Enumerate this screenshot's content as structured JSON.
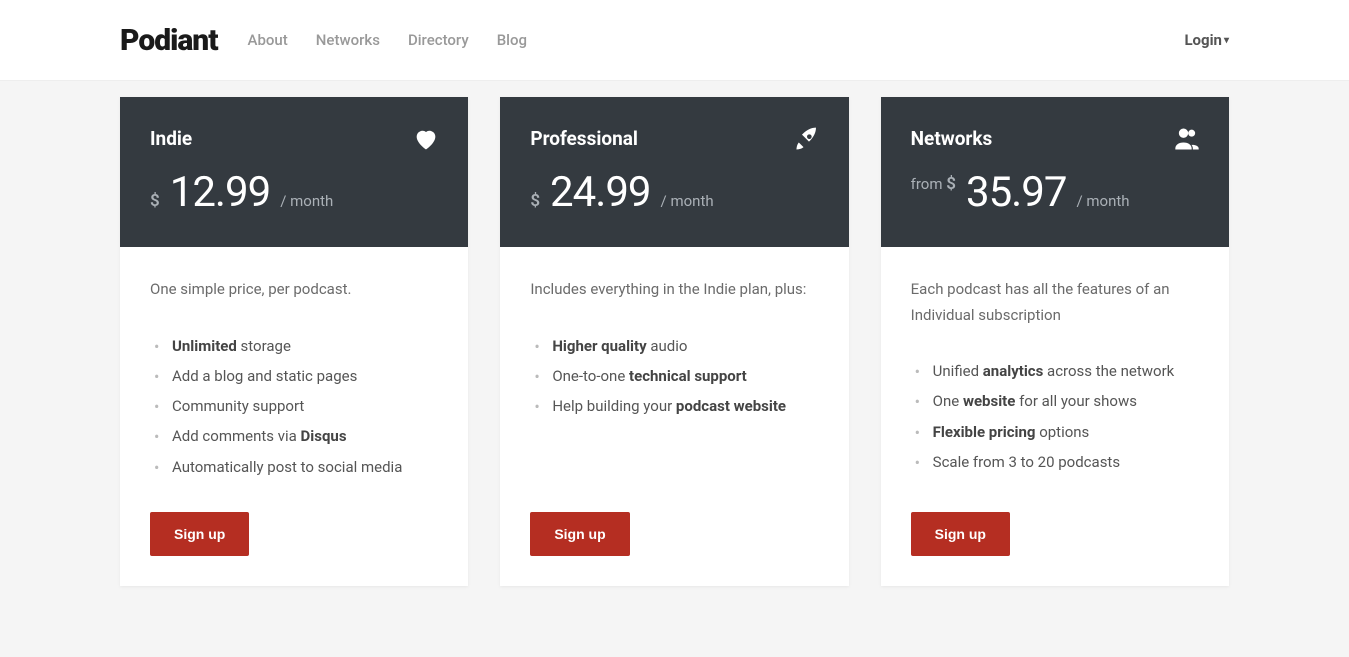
{
  "brand": "Podiant",
  "nav": {
    "about": "About",
    "networks": "Networks",
    "directory": "Directory",
    "blog": "Blog"
  },
  "login": "Login",
  "colors": {
    "card_header_bg": "#343a40",
    "signup_bg": "#b52e22",
    "page_bg": "#f5f5f5",
    "header_bg": "#ffffff",
    "text_muted": "#aab0b6"
  },
  "plans": {
    "indie": {
      "name": "Indie",
      "icon": "heart",
      "price_prefix": "",
      "currency": "$",
      "price": "12.99",
      "period": "/ month",
      "desc": "One simple price, per podcast.",
      "features": [
        "<b>Unlimited</b> storage",
        "Add a blog and static pages",
        "Community support",
        "Add comments via <b>Disqus</b>",
        "Automatically post to social media"
      ],
      "cta": "Sign up"
    },
    "professional": {
      "name": "Professional",
      "icon": "rocket",
      "price_prefix": "",
      "currency": "$",
      "price": "24.99",
      "period": "/ month",
      "desc": "Includes everything in the Indie plan, plus:",
      "features": [
        "<b>Higher quality</b> audio",
        "One-to-one <b>technical support</b>",
        "Help building your <b>podcast website</b>"
      ],
      "cta": "Sign up"
    },
    "networks": {
      "name": "Networks",
      "icon": "users",
      "price_prefix": "from ",
      "currency": "$",
      "price": "35.97",
      "period": "/ month",
      "desc": "Each podcast has all the features of an Individual subscription",
      "features": [
        "Unified <b>analytics</b> across the network",
        "One <b>website</b> for all your shows",
        "<b>Flexible pricing</b> options",
        "Scale from 3 to 20 podcasts"
      ],
      "cta": "Sign up"
    }
  }
}
